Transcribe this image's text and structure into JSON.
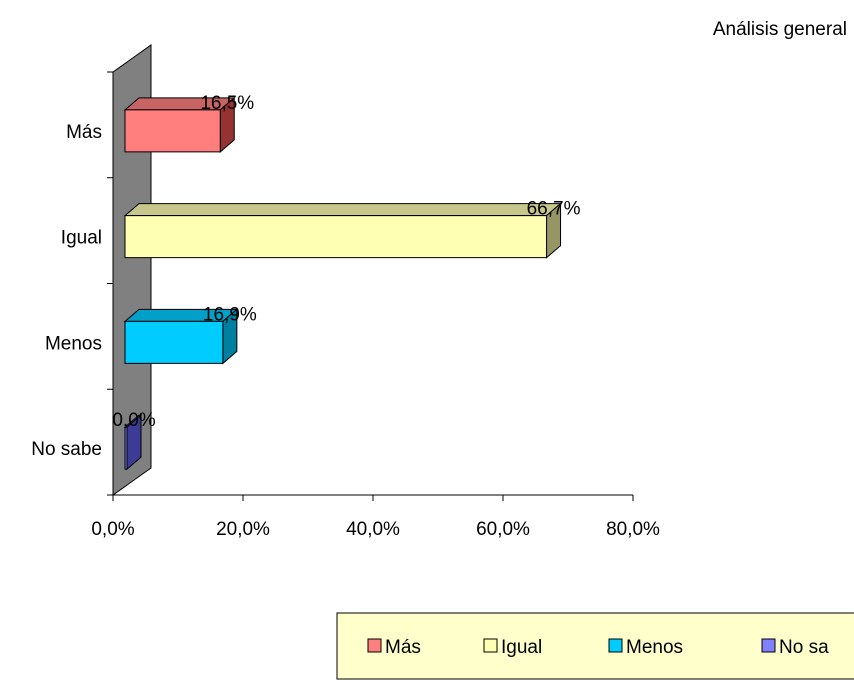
{
  "chart_data": {
    "type": "bar",
    "orientation": "horizontal",
    "three_d": true,
    "title": "Análisis general",
    "categories": [
      "Más",
      "Igual",
      "Menos",
      "No sabe"
    ],
    "values": [
      16.5,
      66.7,
      16.9,
      0.0
    ],
    "data_labels": [
      "16,5%",
      "66,7%",
      "16,9%",
      "0,0%"
    ],
    "xlim": [
      0,
      80
    ],
    "x_ticks": [
      0,
      20,
      40,
      60,
      80
    ],
    "x_tick_labels": [
      "0,0%",
      "20,0%",
      "40,0%",
      "60,0%",
      "80,0%"
    ],
    "grid": false,
    "legend_position": "bottom-right",
    "legend_entries": [
      "Más",
      "Igual",
      "Menos",
      "No sa"
    ],
    "colors": {
      "front": [
        "#ff7f7f",
        "#ffffb3",
        "#00ccff",
        "#8080ff"
      ],
      "top": [
        "#c86464",
        "#c8c88c",
        "#00a0c8",
        "#6464c8"
      ],
      "side": [
        "#963232",
        "#969664",
        "#0080a0",
        "#3c3c96"
      ],
      "back_wall": "#808080",
      "legend_bg": "#ffffcc"
    }
  }
}
